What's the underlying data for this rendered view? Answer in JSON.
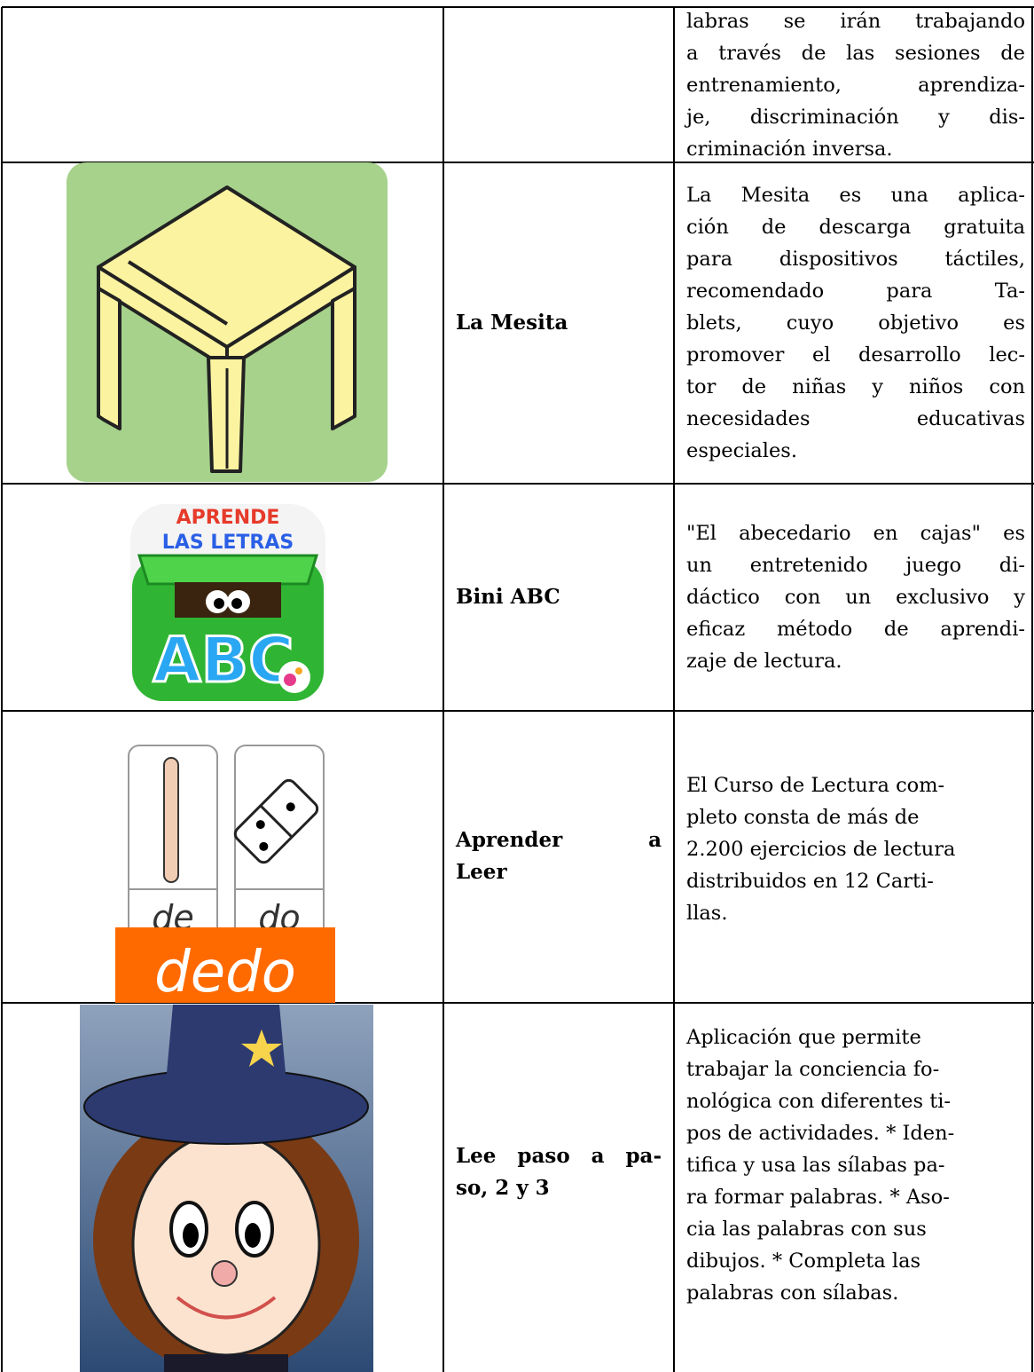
{
  "table": {
    "rows": [
      {
        "description": [
          "labras se irán trabajando",
          "a través de las sesiones de",
          "entrenamiento, aprendiza-",
          "je, discriminación y dis-",
          "criminación inversa."
        ]
      },
      {
        "name": [
          "La Mesita"
        ],
        "description": [
          "La Mesita es una aplica-",
          "ción de descarga gratuita",
          "para dispositivos táctiles,",
          "recomendado para Ta-",
          "blets, cuyo objetivo es",
          "promover el desarrollo lec-",
          "tor de niñas y niños con",
          "necesidades educativas",
          "especiales."
        ]
      },
      {
        "name": [
          "Bini ABC"
        ],
        "icon_text": [
          "APRENDE",
          "LAS LETRAS",
          "ABC"
        ],
        "description": [
          "\"El abecedario en cajas\" es",
          "un entretenido juego di-",
          "dáctico con un exclusivo y",
          "eficaz método de aprendi-",
          "zaje de lectura."
        ]
      },
      {
        "name": [
          "Aprender a",
          "Leer"
        ],
        "icon_text": [
          "de",
          "do",
          "dedo"
        ],
        "description": [
          "El Curso de Lectura com-",
          "pleto consta de más de",
          "2.200 ejercicios de lectura",
          "distribuidos en 12 Carti-",
          "llas."
        ]
      },
      {
        "name": [
          "Lee paso a pa-",
          "so, 2 y 3"
        ],
        "description": [
          "Aplicación que permite",
          "trabajar la conciencia fo-",
          "nológica con diferentes ti-",
          "pos de actividades. * Iden-",
          "tifica y usa las sílabas pa-",
          "ra formar palabras. * Aso-",
          "cia las palabras con sus",
          "dibujos. * Completa las",
          "palabras con sílabas."
        ]
      }
    ]
  }
}
